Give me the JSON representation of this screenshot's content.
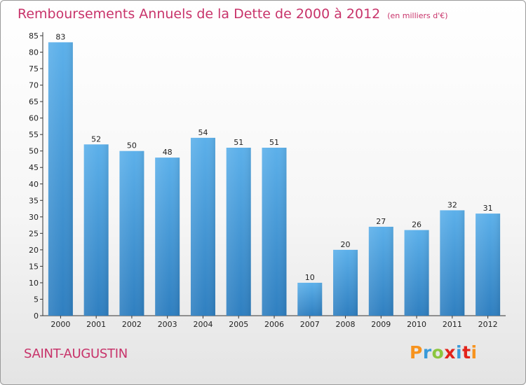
{
  "page": {
    "title": "Remboursements Annuels de la Dette de 2000 à 2012",
    "unit": "(en milliers d'€)",
    "town": "SAINT-AUGUSTIN",
    "logo": "Proxiti",
    "logo_colors": [
      "#f7931e",
      "#3a9ad9",
      "#8cc63f",
      "#e2231a",
      "#3a9ad9",
      "#e2231a",
      "#f7931e"
    ]
  },
  "chart_data": {
    "type": "bar",
    "title": "Remboursements Annuels de la Dette de 2000 à 2012",
    "subtitle": "(en milliers d'€)",
    "xlabel": "",
    "ylabel": "",
    "categories": [
      "2000",
      "2001",
      "2002",
      "2003",
      "2004",
      "2005",
      "2006",
      "2007",
      "2008",
      "2009",
      "2010",
      "2011",
      "2012"
    ],
    "values": [
      83,
      52,
      50,
      48,
      54,
      51,
      51,
      10,
      20,
      27,
      26,
      32,
      31
    ],
    "ylim": [
      0,
      85
    ],
    "yticks": [
      0,
      5,
      10,
      15,
      20,
      25,
      30,
      35,
      40,
      45,
      50,
      55,
      60,
      65,
      70,
      75,
      80,
      85
    ],
    "grid": false,
    "legend": "none",
    "bar_color": "#4a9ee0",
    "title_color": "#c8336a"
  }
}
